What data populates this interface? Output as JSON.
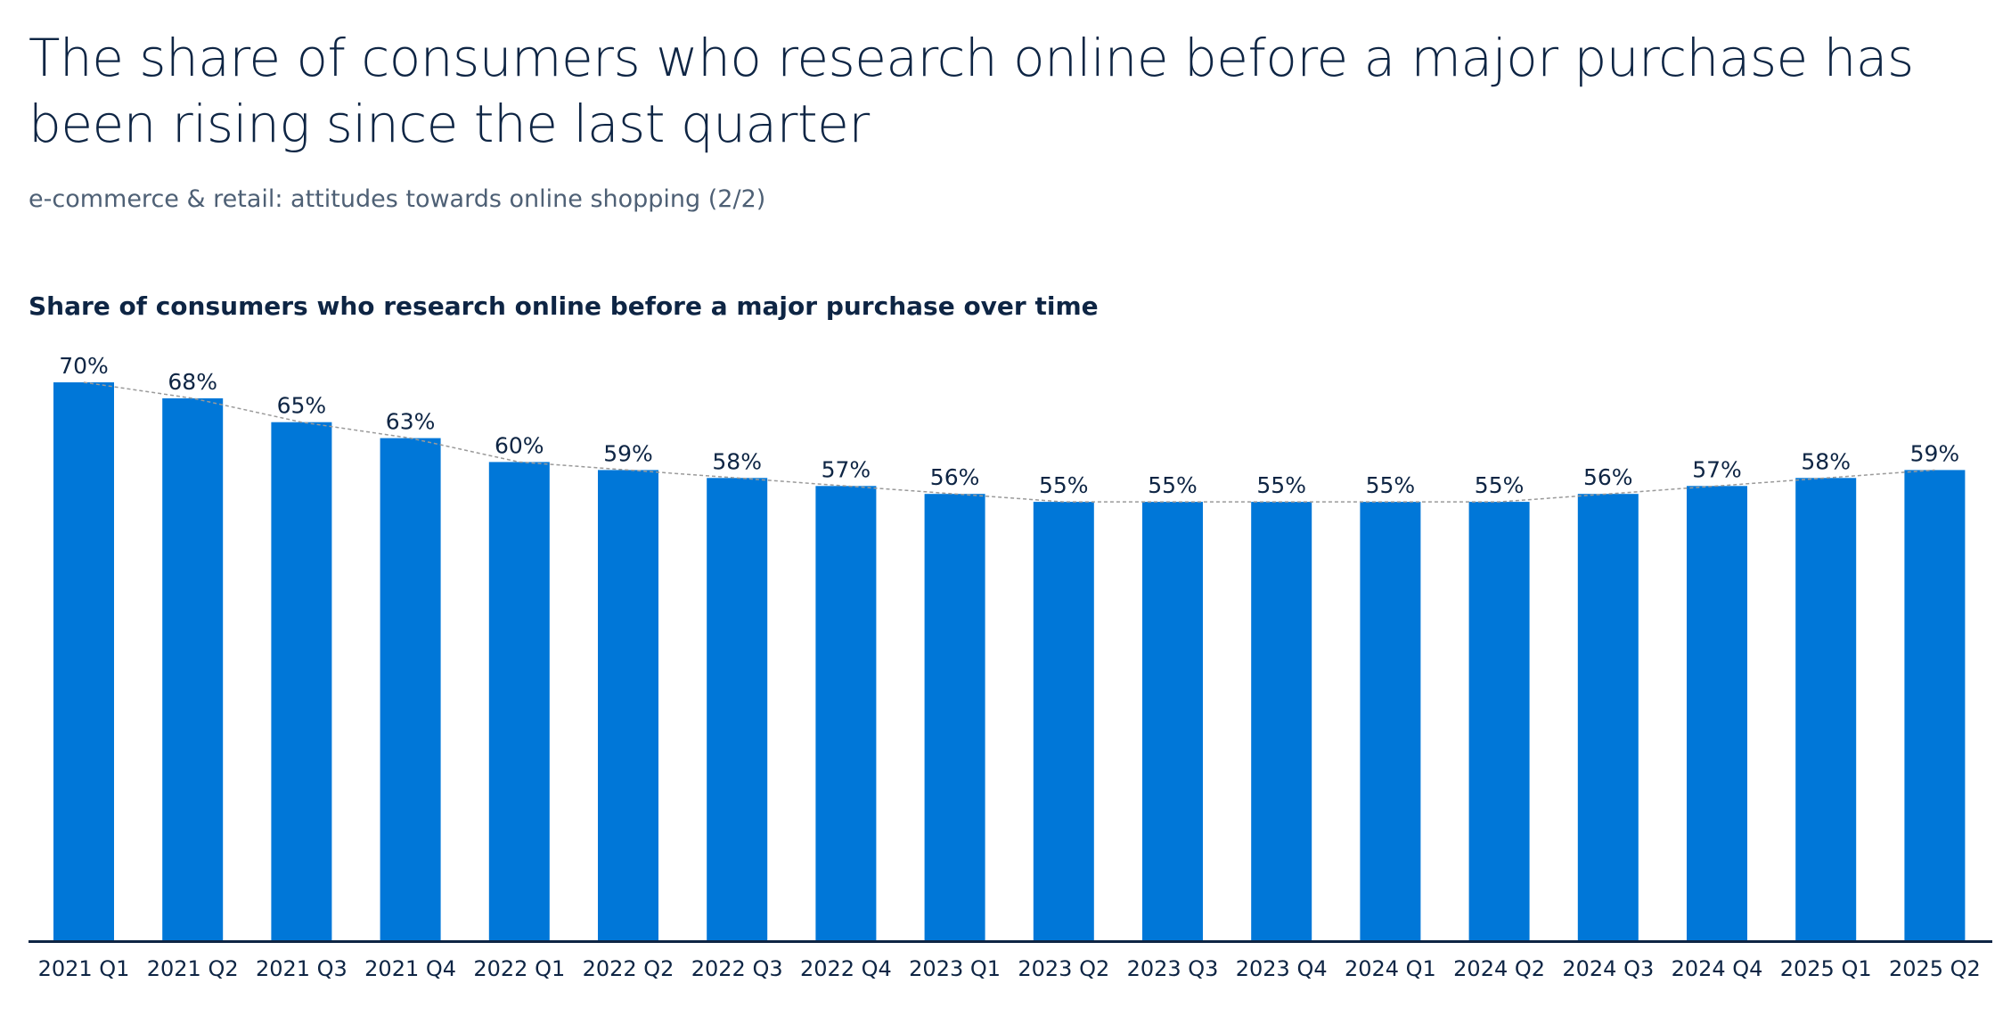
{
  "header": {
    "title": "The share of consumers who research online before a major purchase has been rising since the last quarter",
    "subtitle": "e-commerce & retail: attitudes towards online shopping (2/2)"
  },
  "colors": {
    "bar": "#0077d8",
    "axis": "#0e2544",
    "trend_line": "#9a9a9a",
    "text": "#0e2544"
  },
  "chart_data": {
    "type": "bar",
    "title": "Share of consumers who research online before a major purchase over time",
    "categories": [
      "2021 Q1",
      "2021 Q2",
      "2021 Q3",
      "2021 Q4",
      "2022 Q1",
      "2022 Q2",
      "2022 Q3",
      "2022 Q4",
      "2023 Q1",
      "2023 Q2",
      "2023 Q3",
      "2023 Q4",
      "2024 Q1",
      "2024 Q2",
      "2024 Q3",
      "2024 Q4",
      "2025 Q1",
      "2025 Q2"
    ],
    "values": [
      70,
      68,
      65,
      63,
      60,
      59,
      58,
      57,
      56,
      55,
      55,
      55,
      55,
      55,
      56,
      57,
      58,
      59
    ],
    "labels": [
      "70%",
      "68%",
      "65%",
      "63%",
      "60%",
      "59%",
      "58%",
      "57%",
      "56%",
      "55%",
      "55%",
      "55%",
      "55%",
      "55%",
      "56%",
      "57%",
      "58%",
      "59%"
    ],
    "unit": "%",
    "ylim": [
      0,
      70
    ],
    "xlabel": "",
    "ylabel": "",
    "grid": false,
    "trend_line": "dashed connecting bar tops",
    "legend": "none"
  }
}
